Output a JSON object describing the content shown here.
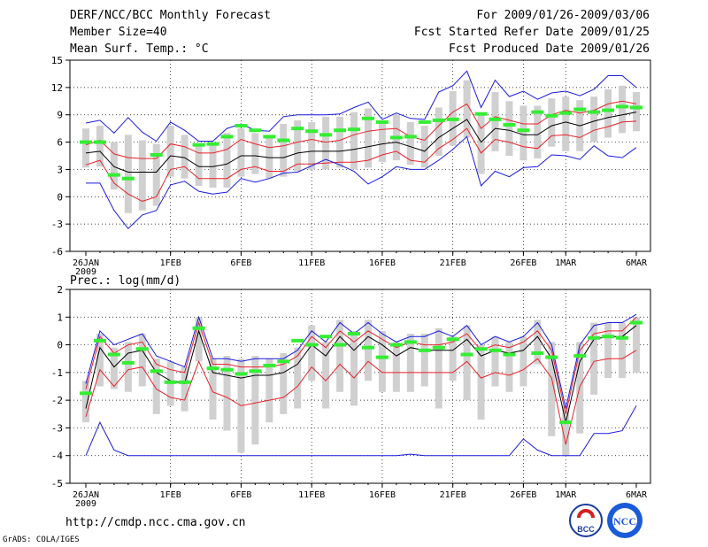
{
  "header": {
    "left": [
      "DERF/NCC/BCC Monthly Forecast",
      "Member Size=40",
      "Mean Surf. Temp.: °C"
    ],
    "right": [
      "For 2009/01/26-2009/03/06",
      "Fcst Started Refer Date 2009/01/25",
      "Fcst Produced Date 2009/01/26"
    ]
  },
  "footer": {
    "url": "http://cmdp.ncc.cma.gov.cn",
    "credit": "GrADS: COLA/IGES",
    "logo_bcc": "BCC",
    "logo_ncc": "NCC"
  },
  "colors": {
    "mean": "#000000",
    "spread": "#e8222a",
    "envelope": "#1a1ae0",
    "member_box": "#d0d0d0",
    "obs_dash": "#33ee33"
  },
  "chart_data": [
    {
      "type": "line",
      "title": "Mean Surf. Temp.: °C",
      "x_ticks": [
        "26JAN",
        "1FEB",
        "6FEB",
        "11FEB",
        "16FEB",
        "21FEB",
        "26FEB",
        "1MAR",
        "6MAR"
      ],
      "x_tick_days": [
        0,
        6,
        11,
        16,
        21,
        26,
        31,
        34,
        39
      ],
      "x_sub_label": "2009",
      "ylim": [
        -6,
        15
      ],
      "yticks": [
        -6,
        -3,
        0,
        3,
        6,
        9,
        12,
        15
      ],
      "series": [
        {
          "name": "ensemble mean",
          "values": [
            4.8,
            5.0,
            3.3,
            2.7,
            2.7,
            2.7,
            4.5,
            4.3,
            3.3,
            3.3,
            3.6,
            4.5,
            4.5,
            4.3,
            4.3,
            4.8,
            5.0,
            5.0,
            5.0,
            5.2,
            5.5,
            5.8,
            6.0,
            5.5,
            5.0,
            6.5,
            7.5,
            8.5,
            6.0,
            7.5,
            7.3,
            6.8,
            6.8,
            7.8,
            8.2,
            7.8,
            8.3,
            8.7,
            9.0,
            9.3
          ]
        },
        {
          "name": "mean + spread",
          "values": [
            5.7,
            6.2,
            4.7,
            4.3,
            4.2,
            4.2,
            5.8,
            5.5,
            4.8,
            4.8,
            5.2,
            6.3,
            5.8,
            5.4,
            5.6,
            6.0,
            6.3,
            6.0,
            6.2,
            6.8,
            7.2,
            7.4,
            7.5,
            6.6,
            6.2,
            7.8,
            9.3,
            10.2,
            7.5,
            8.8,
            8.4,
            8.0,
            8.0,
            9.0,
            9.5,
            9.2,
            9.5,
            10.2,
            10.5,
            10.2
          ]
        },
        {
          "name": "mean - spread",
          "values": [
            3.5,
            4.0,
            1.5,
            0.3,
            -0.5,
            0.0,
            3.0,
            3.3,
            2.0,
            2.0,
            2.0,
            3.0,
            3.3,
            2.8,
            2.8,
            3.6,
            3.6,
            3.7,
            3.8,
            3.8,
            4.0,
            4.6,
            5.0,
            4.0,
            3.8,
            5.3,
            6.3,
            7.5,
            4.8,
            6.3,
            6.0,
            5.5,
            5.3,
            6.7,
            6.8,
            6.5,
            7.3,
            7.7,
            8.2,
            8.3
          ]
        },
        {
          "name": "ensemble max",
          "values": [
            8.1,
            8.4,
            7.0,
            8.7,
            7.1,
            6.1,
            8.2,
            7.3,
            6.1,
            6.1,
            7.5,
            8.0,
            7.3,
            7.2,
            8.8,
            9.0,
            9.0,
            9.0,
            9.1,
            9.8,
            10.4,
            8.5,
            9.2,
            8.6,
            8.5,
            11.5,
            12.2,
            13.8,
            9.8,
            12.8,
            11.0,
            11.6,
            10.7,
            11.4,
            11.6,
            11.1,
            11.8,
            13.3,
            13.3,
            12.0
          ]
        },
        {
          "name": "ensemble min",
          "values": [
            1.5,
            1.5,
            -1.5,
            -3.5,
            -2.0,
            -1.5,
            1.3,
            1.7,
            0.6,
            0.3,
            0.5,
            2.0,
            1.6,
            2.0,
            2.6,
            2.7,
            3.4,
            4.1,
            3.5,
            2.8,
            1.4,
            2.2,
            3.3,
            3.0,
            3.0,
            4.0,
            5.2,
            6.6,
            1.2,
            2.8,
            2.2,
            3.2,
            3.3,
            4.6,
            4.5,
            4.1,
            5.6,
            4.5,
            4.3,
            5.4
          ]
        }
      ],
      "member_range": {
        "low": [
          3.2,
          3.3,
          0.8,
          -1.8,
          -1.5,
          -1.0,
          2.2,
          2.0,
          1.2,
          1.0,
          1.0,
          2.2,
          2.5,
          2.0,
          2.2,
          2.8,
          3.0,
          3.0,
          3.2,
          3.0,
          3.2,
          3.8,
          4.0,
          3.5,
          3.2,
          4.5,
          5.6,
          6.5,
          2.5,
          5.0,
          4.5,
          4.0,
          4.2,
          5.5,
          5.0,
          5.0,
          6.0,
          6.5,
          7.0,
          7.2
        ],
        "high": [
          7.5,
          7.8,
          6.0,
          6.8,
          6.2,
          5.8,
          7.8,
          6.8,
          5.8,
          5.8,
          7.0,
          7.5,
          7.0,
          6.8,
          8.0,
          8.4,
          8.2,
          8.8,
          8.8,
          9.3,
          9.7,
          8.0,
          9.0,
          8.2,
          7.8,
          9.8,
          11.6,
          12.8,
          9.0,
          11.5,
          10.5,
          10.0,
          10.0,
          10.8,
          11.0,
          10.6,
          11.0,
          11.8,
          12.2,
          11.5
        ]
      },
      "observed": [
        6.0,
        6.0,
        2.4,
        2.0,
        null,
        4.6,
        null,
        null,
        5.7,
        5.8,
        6.6,
        7.8,
        7.3,
        6.6,
        6.2,
        7.5,
        7.2,
        6.8,
        7.3,
        7.4,
        8.6,
        8.2,
        6.5,
        6.6,
        8.2,
        8.4,
        8.5,
        null,
        9.1,
        8.5,
        7.9,
        7.3,
        9.3,
        8.9,
        9.2,
        9.6,
        9.3,
        9.5,
        9.9,
        9.8
      ]
    },
    {
      "type": "line",
      "title": "Prec.: log(mm/d)",
      "x_ticks": [
        "26JAN",
        "1FEB",
        "6FEB",
        "11FEB",
        "16FEB",
        "21FEB",
        "26FEB",
        "1MAR",
        "6MAR"
      ],
      "x_tick_days": [
        0,
        6,
        11,
        16,
        21,
        26,
        31,
        34,
        39
      ],
      "x_sub_label": "2009",
      "ylim": [
        -5,
        2
      ],
      "yticks": [
        -5,
        -4,
        -3,
        -2,
        -1,
        0,
        1,
        2
      ],
      "series": [
        {
          "name": "ensemble mean",
          "values": [
            -2.3,
            -0.1,
            -0.8,
            -0.3,
            -0.2,
            -1.0,
            -1.3,
            -1.4,
            0.5,
            -1.0,
            -1.1,
            -1.2,
            -1.1,
            -1.1,
            -1.0,
            -0.7,
            0.0,
            -0.4,
            0.3,
            -0.2,
            0.3,
            0.0,
            -0.4,
            -0.1,
            -0.2,
            -0.2,
            -0.2,
            0.2,
            -0.4,
            -0.2,
            -0.3,
            -0.2,
            0.3,
            -0.5,
            -2.8,
            -0.6,
            0.2,
            0.3,
            0.3,
            0.7
          ]
        },
        {
          "name": "mean + spread",
          "values": [
            -1.6,
            0.3,
            -0.3,
            0.0,
            0.1,
            -0.7,
            -0.9,
            -1.0,
            0.8,
            -0.7,
            -0.7,
            -0.8,
            -0.8,
            -0.8,
            -0.7,
            -0.4,
            0.3,
            -0.1,
            0.5,
            0.1,
            0.5,
            0.2,
            -0.1,
            0.1,
            0.0,
            0.0,
            0.1,
            0.4,
            -0.2,
            0.0,
            -0.1,
            0.1,
            0.5,
            -0.2,
            -2.5,
            -0.2,
            0.4,
            0.5,
            0.5,
            1.0
          ]
        },
        {
          "name": "mean - spread",
          "values": [
            -2.6,
            -0.9,
            -1.5,
            -0.9,
            -0.8,
            -1.6,
            -1.9,
            -2.0,
            -0.6,
            -1.7,
            -1.9,
            -2.2,
            -2.1,
            -2.0,
            -1.9,
            -1.5,
            -0.8,
            -1.3,
            -0.7,
            -1.2,
            -0.6,
            -1.0,
            -1.0,
            -1.0,
            -1.0,
            -1.0,
            -1.0,
            -0.6,
            -1.2,
            -1.0,
            -1.1,
            -0.9,
            -0.5,
            -1.2,
            -3.6,
            -1.5,
            -0.6,
            -0.5,
            -0.5,
            -0.2
          ]
        },
        {
          "name": "ensemble max",
          "values": [
            -1.4,
            0.5,
            0.0,
            0.2,
            0.4,
            -0.4,
            -0.6,
            -0.8,
            1.0,
            -0.5,
            -0.5,
            -0.6,
            -0.5,
            -0.5,
            -0.5,
            -0.2,
            0.5,
            0.1,
            0.8,
            0.4,
            0.8,
            0.4,
            0.1,
            0.3,
            0.3,
            0.5,
            0.3,
            0.7,
            0.0,
            0.3,
            0.1,
            0.3,
            0.8,
            0.0,
            -2.3,
            0.0,
            0.7,
            0.8,
            0.8,
            1.1
          ]
        },
        {
          "name": "ensemble min",
          "values": [
            -4.0,
            -2.8,
            -3.8,
            -4.0,
            -4.0,
            -4.0,
            -4.0,
            -4.0,
            -4.0,
            -4.0,
            -4.0,
            -4.0,
            -4.0,
            -4.0,
            -4.0,
            -4.0,
            -4.0,
            -4.0,
            -4.0,
            -4.0,
            -4.0,
            -4.0,
            -4.0,
            -3.95,
            -4.0,
            -4.0,
            -4.0,
            -4.0,
            -4.0,
            -4.0,
            -4.0,
            -3.4,
            -3.8,
            -4.0,
            -4.0,
            -4.0,
            -3.2,
            -3.2,
            -3.1,
            -2.2
          ]
        },
        {
          "name": "ensemble lower",
          "values": []
        }
      ],
      "member_range": {
        "low": [
          -2.8,
          -1.5,
          -1.6,
          -1.7,
          -1.5,
          -2.5,
          -2.2,
          -2.4,
          -0.6,
          -2.7,
          -3.1,
          -3.9,
          -3.6,
          -2.8,
          -2.5,
          -2.3,
          -1.3,
          -2.3,
          -1.7,
          -2.2,
          -1.3,
          -1.7,
          -1.7,
          -1.7,
          -1.5,
          -2.3,
          -1.3,
          -2.0,
          -2.7,
          -1.5,
          -1.7,
          -1.5,
          -0.7,
          -3.3,
          -4.0,
          -3.2,
          -1.8,
          -1.2,
          -1.2,
          -1.0
        ],
        "high": [
          -1.3,
          0.4,
          -0.1,
          0.1,
          0.4,
          -0.5,
          -0.6,
          -0.8,
          1.0,
          -0.5,
          -0.4,
          -0.5,
          -0.4,
          -0.5,
          -0.3,
          -0.1,
          0.7,
          0.1,
          0.9,
          0.5,
          0.9,
          0.5,
          0.1,
          0.4,
          0.4,
          0.6,
          0.3,
          0.7,
          0.0,
          0.3,
          0.1,
          0.3,
          0.9,
          0.1,
          -2.2,
          0.1,
          0.8,
          0.8,
          0.8,
          1.0
        ]
      },
      "observed": [
        -1.75,
        0.15,
        -0.35,
        -0.65,
        -0.15,
        -0.95,
        -1.35,
        -1.35,
        0.6,
        -0.85,
        -0.9,
        -1.05,
        -0.95,
        -0.75,
        -0.6,
        0.15,
        0.0,
        0.3,
        0.0,
        0.4,
        -0.1,
        -0.45,
        0.0,
        0.1,
        -0.2,
        -0.1,
        0.2,
        -0.35,
        -0.15,
        -0.2,
        -0.35,
        null,
        -0.3,
        -0.45,
        -2.8,
        -0.4,
        0.25,
        0.3,
        0.25,
        0.8
      ]
    }
  ]
}
